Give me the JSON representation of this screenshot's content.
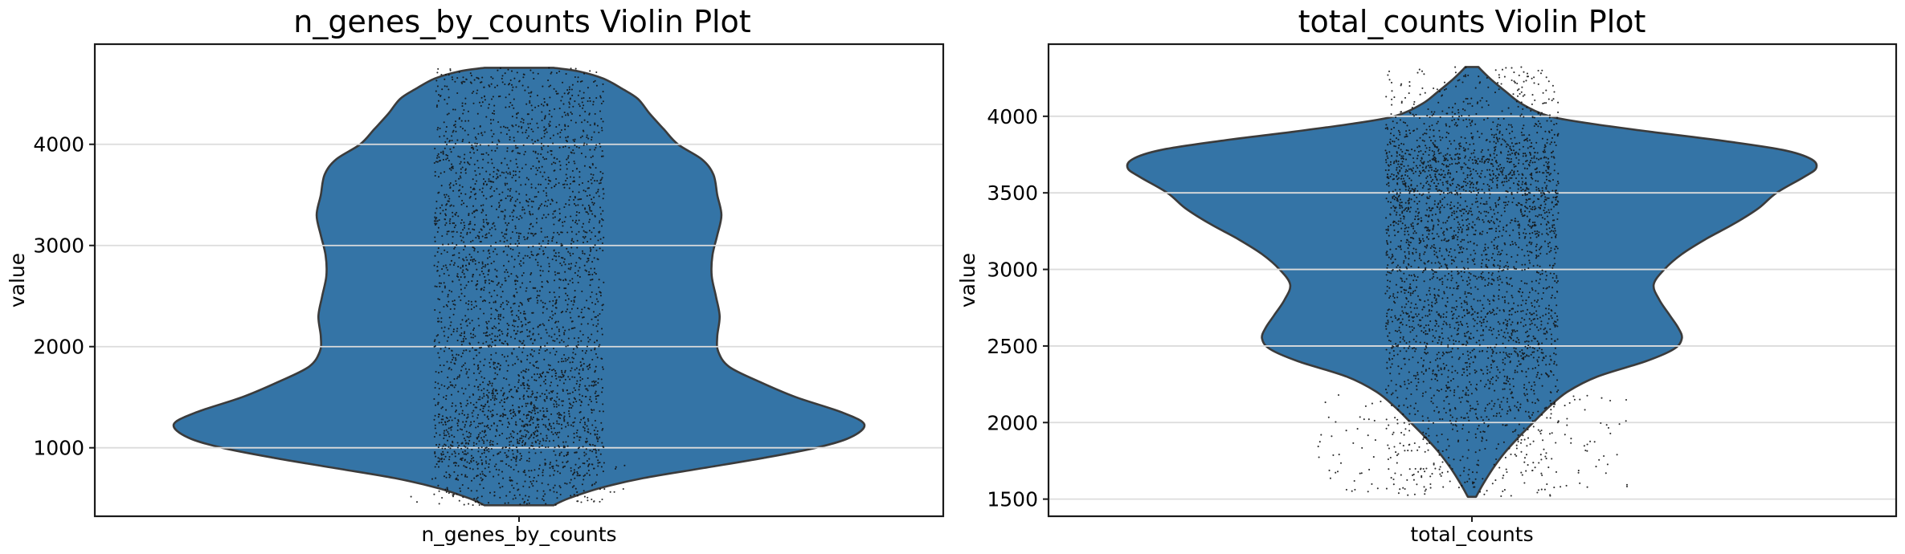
{
  "figure": {
    "background": "#ffffff"
  },
  "chart_data": [
    {
      "type": "violin",
      "title": "n_genes_by_counts Violin Plot",
      "ylabel": "value",
      "xticklabel": "n_genes_by_counts",
      "ylim": [
        323,
        4990
      ],
      "yticks": [
        1000,
        2000,
        3000,
        4000
      ],
      "grid": true,
      "legend": "none",
      "data_min": 432,
      "data_max": 4757,
      "colors": {
        "fill": "#3474A6",
        "edge": "#3B3B3B",
        "grid": "#DCDCDC",
        "points": "#111111",
        "axis": "#1a1a1a",
        "text": "#000000"
      },
      "max_halfwidth_frac": 0.407,
      "profile": [
        [
          432,
          0.1
        ],
        [
          500,
          0.144
        ],
        [
          600,
          0.233
        ],
        [
          700,
          0.36
        ],
        [
          800,
          0.535
        ],
        [
          900,
          0.709
        ],
        [
          1000,
          0.86
        ],
        [
          1100,
          0.958
        ],
        [
          1230,
          1.0
        ],
        [
          1350,
          0.935
        ],
        [
          1500,
          0.802
        ],
        [
          1650,
          0.698
        ],
        [
          1800,
          0.609
        ],
        [
          1950,
          0.577
        ],
        [
          2100,
          0.574
        ],
        [
          2300,
          0.581
        ],
        [
          2500,
          0.57
        ],
        [
          2700,
          0.558
        ],
        [
          2900,
          0.56
        ],
        [
          3100,
          0.574
        ],
        [
          3300,
          0.586
        ],
        [
          3500,
          0.574
        ],
        [
          3700,
          0.563
        ],
        [
          3850,
          0.53
        ],
        [
          4000,
          0.46
        ],
        [
          4150,
          0.419
        ],
        [
          4300,
          0.379
        ],
        [
          4450,
          0.344
        ],
        [
          4550,
          0.298
        ],
        [
          4650,
          0.244
        ],
        [
          4720,
          0.174
        ],
        [
          4757,
          0.1
        ]
      ],
      "jitter": {
        "count": 3200,
        "band_halfwidth_frac": 0.1,
        "uniform_mix": 0.32,
        "seed": 20240501,
        "extra": {
          "count": 70,
          "range": [
            438,
            860
          ],
          "band_mult": 1.3
        }
      }
    },
    {
      "type": "violin",
      "title": "total_counts Violin Plot",
      "ylabel": "value",
      "xticklabel": "total_counts",
      "ylim": [
        1388,
        4471
      ],
      "yticks": [
        1500,
        2000,
        2500,
        3000,
        3500,
        4000
      ],
      "grid": true,
      "legend": "none",
      "data_min": 1515,
      "data_max": 4322,
      "colors": {
        "fill": "#3474A6",
        "edge": "#3B3B3B",
        "grid": "#DCDCDC",
        "points": "#111111",
        "axis": "#1a1a1a",
        "text": "#000000"
      },
      "max_halfwidth_frac": 0.406,
      "profile": [
        [
          1515,
          0.012
        ],
        [
          1600,
          0.033
        ],
        [
          1700,
          0.061
        ],
        [
          1800,
          0.094
        ],
        [
          1900,
          0.134
        ],
        [
          2000,
          0.178
        ],
        [
          2100,
          0.223
        ],
        [
          2200,
          0.277
        ],
        [
          2300,
          0.364
        ],
        [
          2400,
          0.505
        ],
        [
          2480,
          0.587
        ],
        [
          2550,
          0.61
        ],
        [
          2620,
          0.599
        ],
        [
          2700,
          0.575
        ],
        [
          2800,
          0.545
        ],
        [
          2900,
          0.528
        ],
        [
          3000,
          0.559
        ],
        [
          3100,
          0.61
        ],
        [
          3200,
          0.681
        ],
        [
          3300,
          0.763
        ],
        [
          3400,
          0.833
        ],
        [
          3500,
          0.885
        ],
        [
          3600,
          0.962
        ],
        [
          3660,
          1.0
        ],
        [
          3720,
          0.986
        ],
        [
          3780,
          0.904
        ],
        [
          3840,
          0.728
        ],
        [
          3900,
          0.516
        ],
        [
          3950,
          0.352
        ],
        [
          4000,
          0.225
        ],
        [
          4080,
          0.146
        ],
        [
          4160,
          0.099
        ],
        [
          4240,
          0.056
        ],
        [
          4300,
          0.028
        ],
        [
          4322,
          0.019
        ]
      ],
      "jitter": {
        "count": 3200,
        "band_halfwidth_frac": 0.102,
        "uniform_mix": 0.3,
        "seed": 77031,
        "extra": {
          "count": 150,
          "range": [
            1545,
            2190
          ],
          "band_mult": 1.8
        }
      }
    }
  ]
}
